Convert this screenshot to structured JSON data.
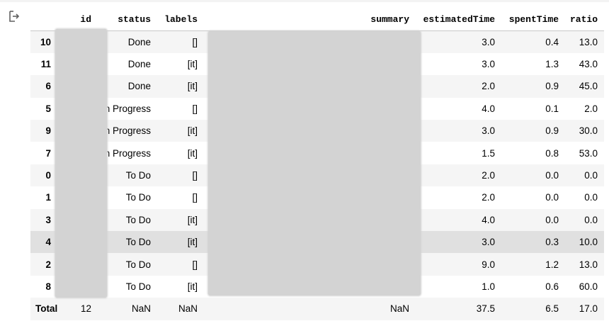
{
  "output_icon": "output-arrow-icon",
  "table": {
    "columns": [
      {
        "key": "index",
        "label": ""
      },
      {
        "key": "id",
        "label": "id"
      },
      {
        "key": "status",
        "label": "status"
      },
      {
        "key": "labels",
        "label": "labels"
      },
      {
        "key": "summary",
        "label": "summary"
      },
      {
        "key": "estimatedTime",
        "label": "estimatedTime"
      },
      {
        "key": "spentTime",
        "label": "spentTime"
      },
      {
        "key": "ratio",
        "label": "ratio"
      }
    ],
    "rows": [
      {
        "index": "10",
        "id": "",
        "status": "Done",
        "labels": "[]",
        "summary": "",
        "estimatedTime": "3.0",
        "spentTime": "0.4",
        "ratio": "13.0"
      },
      {
        "index": "11",
        "id": "",
        "status": "Done",
        "labels": "[it]",
        "summary": "",
        "estimatedTime": "3.0",
        "spentTime": "1.3",
        "ratio": "43.0"
      },
      {
        "index": "6",
        "id": "",
        "status": "Done",
        "labels": "[it]",
        "summary": "",
        "estimatedTime": "2.0",
        "spentTime": "0.9",
        "ratio": "45.0"
      },
      {
        "index": "5",
        "id": "",
        "status": "n Progress",
        "labels": "[]",
        "summary": "",
        "estimatedTime": "4.0",
        "spentTime": "0.1",
        "ratio": "2.0"
      },
      {
        "index": "9",
        "id": "",
        "status": "n Progress",
        "labels": "[it]",
        "summary": "",
        "estimatedTime": "3.0",
        "spentTime": "0.9",
        "ratio": "30.0"
      },
      {
        "index": "7",
        "id": "",
        "status": "n Progress",
        "labels": "[it]",
        "summary": "",
        "estimatedTime": "1.5",
        "spentTime": "0.8",
        "ratio": "53.0"
      },
      {
        "index": "0",
        "id": "",
        "status": "To Do",
        "labels": "[]",
        "summary": "",
        "estimatedTime": "2.0",
        "spentTime": "0.0",
        "ratio": "0.0"
      },
      {
        "index": "1",
        "id": "",
        "status": "To Do",
        "labels": "[]",
        "summary": "",
        "estimatedTime": "2.0",
        "spentTime": "0.0",
        "ratio": "0.0"
      },
      {
        "index": "3",
        "id": "",
        "status": "To Do",
        "labels": "[it]",
        "summary": "",
        "estimatedTime": "4.0",
        "spentTime": "0.0",
        "ratio": "0.0"
      },
      {
        "index": "4",
        "id": "",
        "status": "To Do",
        "labels": "[it]",
        "summary": "",
        "estimatedTime": "3.0",
        "spentTime": "0.3",
        "ratio": "10.0"
      },
      {
        "index": "2",
        "id": "",
        "status": "To Do",
        "labels": "[]",
        "summary": "",
        "estimatedTime": "9.0",
        "spentTime": "1.2",
        "ratio": "13.0"
      },
      {
        "index": "8",
        "id": "",
        "status": "To Do",
        "labels": "[it]",
        "summary": "",
        "estimatedTime": "1.0",
        "spentTime": "0.6",
        "ratio": "60.0"
      },
      {
        "index": "Total",
        "id": "12",
        "status": "NaN",
        "labels": "NaN",
        "summary": "NaN",
        "estimatedTime": "37.5",
        "spentTime": "6.5",
        "ratio": "17.0"
      }
    ]
  },
  "highlight_color": "#e0e0e0",
  "stripe_color": "#f5f5f5",
  "redaction_color": "#d3d3d3"
}
